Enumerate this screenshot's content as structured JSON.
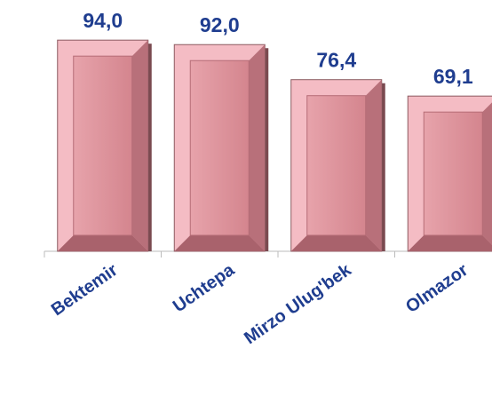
{
  "chart_data": {
    "type": "bar",
    "categories": [
      "Bektemir",
      "Uchtepa",
      "Mirzo Ulug'bek",
      "Olmazor"
    ],
    "values": [
      94.0,
      92.0,
      76.4,
      69.1
    ],
    "value_labels": [
      "94,0",
      "92,0",
      "76,4",
      "69,1"
    ],
    "color": "#d98c95"
  }
}
